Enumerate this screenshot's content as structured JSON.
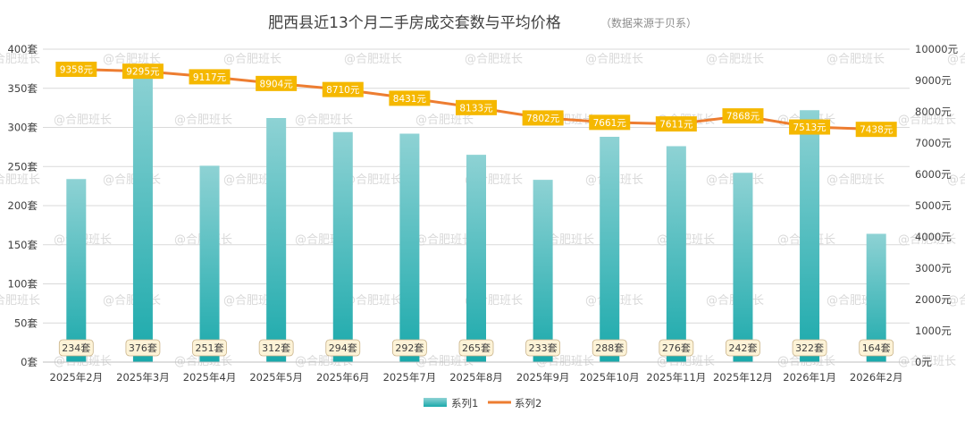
{
  "chart_data": {
    "type": "bar+line",
    "title": "肥西县近13个月二手房成交套数与平均价格",
    "subtitle": "（数据来源于贝系）",
    "categories": [
      "2025年2月",
      "2025年3月",
      "2025年4月",
      "2025年5月",
      "2025年6月",
      "2025年7月",
      "2025年8月",
      "2025年9月",
      "2025年10月",
      "2025年11月",
      "2025年12月",
      "2026年1月",
      "2026年2月"
    ],
    "series": [
      {
        "name": "系列1",
        "type": "bar",
        "axis": "left",
        "values": [
          234,
          376,
          251,
          312,
          294,
          292,
          265,
          233,
          288,
          276,
          242,
          322,
          164
        ],
        "labels": [
          "234套",
          "376套",
          "251套",
          "312套",
          "294套",
          "292套",
          "265套",
          "233套",
          "288套",
          "276套",
          "242套",
          "322套",
          "164套"
        ],
        "color": "#2fb3b5"
      },
      {
        "name": "系列2",
        "type": "line",
        "axis": "right",
        "values": [
          9358,
          9295,
          9117,
          8904,
          8710,
          8431,
          8133,
          7802,
          7661,
          7611,
          7868,
          7513,
          7438
        ],
        "labels": [
          "9358元",
          "9295元",
          "9117元",
          "8904元",
          "8710元",
          "8431元",
          "8133元",
          "7802元",
          "7661元",
          "7611元",
          "7868元",
          "7513元",
          "7438元"
        ],
        "color": "#ed7d31"
      }
    ],
    "yleft": {
      "min": 0,
      "max": 400,
      "step": 50,
      "ticks": [
        "0套",
        "50套",
        "100套",
        "150套",
        "200套",
        "250套",
        "300套",
        "350套",
        "400套"
      ]
    },
    "yright": {
      "min": 0,
      "max": 10000,
      "step": 1000,
      "ticks": [
        "0元",
        "1000元",
        "2000元",
        "3000元",
        "4000元",
        "5000元",
        "6000元",
        "7000元",
        "8000元",
        "9000元",
        "10000元"
      ]
    },
    "grid": true,
    "legend": "bottom-center",
    "line_label_color": "#f5b800",
    "bar_label_fill": "#fdf3d7",
    "watermark": "@合肥班长"
  }
}
